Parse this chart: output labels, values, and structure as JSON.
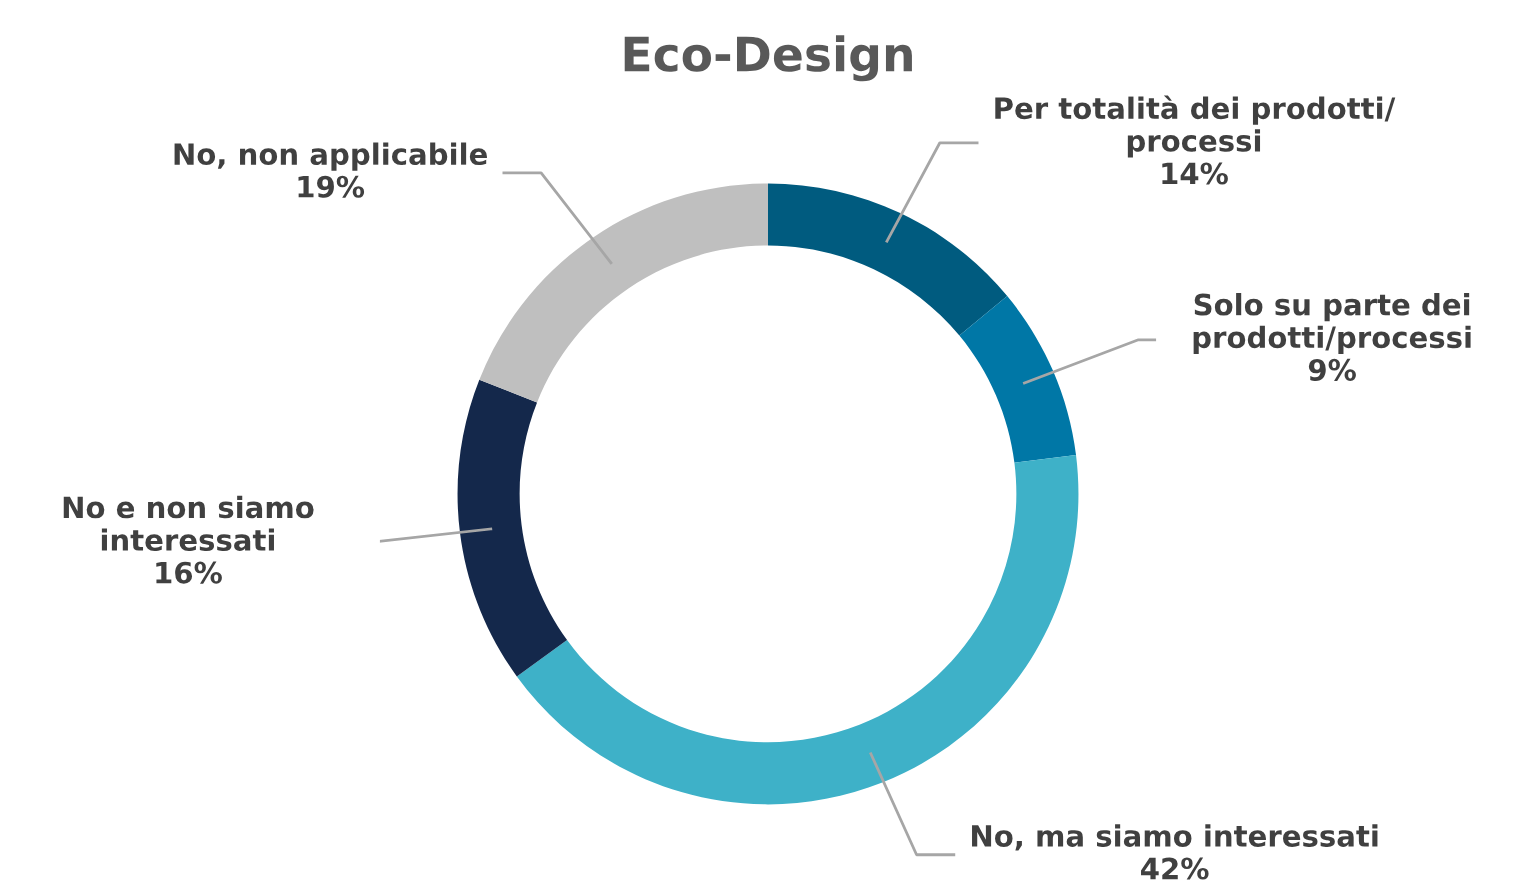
{
  "chart_data": {
    "type": "donut",
    "title": "Eco-Design",
    "categories": [
      "Per totalità dei prodotti/\nprocessi",
      "Solo su parte dei\nprodotti/processi",
      "No, ma siamo interessati",
      "No e non siamo\ninteressati",
      "No, non applicabile"
    ],
    "values": [
      14,
      9,
      42,
      16,
      19
    ],
    "value_labels": [
      "14%",
      "9%",
      "42%",
      "16%",
      "19%"
    ],
    "colors": [
      "#005b7f",
      "#0077a6",
      "#3eb1c8",
      "#14284b",
      "#bfbfbf"
    ],
    "legend": false
  }
}
